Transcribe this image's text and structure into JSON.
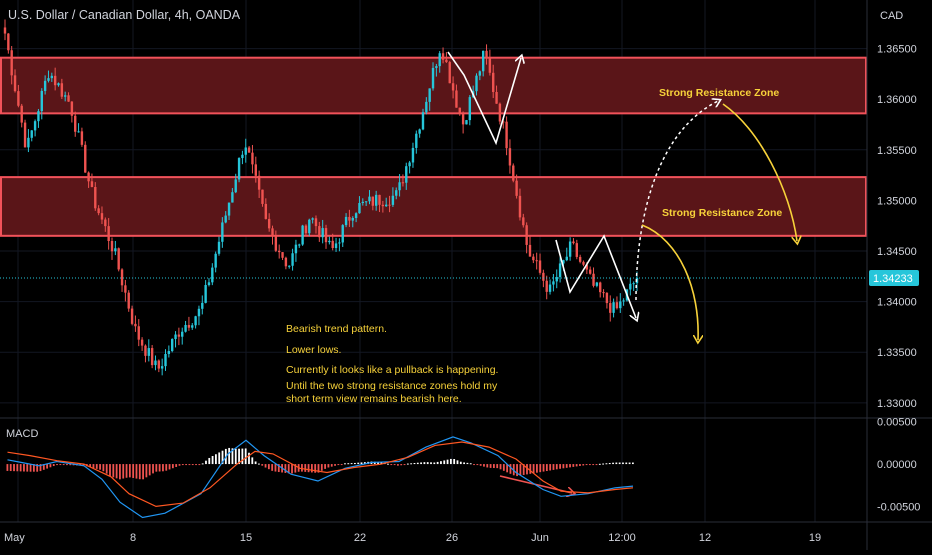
{
  "header": {
    "symbol_title": "U.S. Dollar / Canadian Dollar, 4h, OANDA"
  },
  "colors": {
    "up": "#26c6da",
    "down": "#ef5350",
    "zone_fill": "#5a1518",
    "zone_border": "#f2525a",
    "annotation": "#f7d23a",
    "macd_line": "#2196f3",
    "signal_line": "#ff5722",
    "hist_up": "#ffffff",
    "hist_down": "#ef5350",
    "price_badge": "#26c6da"
  },
  "chart_data": [
    {
      "type": "candlestick",
      "title": "U.S. Dollar / Canadian Dollar, 4h, OANDA",
      "currency_label": "CAD",
      "y_ticks": [
        "1.36500",
        "1.36000",
        "1.35500",
        "1.35000",
        "1.34500",
        "1.34000",
        "1.33500",
        "1.33000"
      ],
      "ylim": [
        1.3285,
        1.3698
      ],
      "x_tick_labels": [
        "May",
        "8",
        "15",
        "22",
        "26",
        "Jun",
        "12:00",
        "12",
        "19"
      ],
      "last_price": "1.34233",
      "last_price_value": 1.34233,
      "series_anchor_closes": [
        {
          "t": "May 1",
          "close": 1.3665
        },
        {
          "t": "May 2",
          "close": 1.355
        },
        {
          "t": "May 3",
          "close": 1.3628
        },
        {
          "t": "May 4",
          "close": 1.3595
        },
        {
          "t": "May 5",
          "close": 1.3505
        },
        {
          "t": "May 7",
          "close": 1.345
        },
        {
          "t": "May 8",
          "close": 1.337
        },
        {
          "t": "May 9",
          "close": 1.3332
        },
        {
          "t": "May 10",
          "close": 1.3372
        },
        {
          "t": "May 11",
          "close": 1.3392
        },
        {
          "t": "May 12",
          "close": 1.3475
        },
        {
          "t": "May 15",
          "close": 1.356
        },
        {
          "t": "May 16",
          "close": 1.3475
        },
        {
          "t": "May 17",
          "close": 1.3435
        },
        {
          "t": "May 18",
          "close": 1.3485
        },
        {
          "t": "May 19",
          "close": 1.345
        },
        {
          "t": "May 22",
          "close": 1.3492
        },
        {
          "t": "May 23",
          "close": 1.35
        },
        {
          "t": "May 24",
          "close": 1.3505
        },
        {
          "t": "May 25",
          "close": 1.3575
        },
        {
          "t": "May 26",
          "close": 1.3655
        },
        {
          "t": "May 29",
          "close": 1.3575
        },
        {
          "t": "May 30",
          "close": 1.3645
        },
        {
          "t": "May 31",
          "close": 1.356
        },
        {
          "t": "Jun 1",
          "close": 1.345
        },
        {
          "t": "Jun 2",
          "close": 1.341
        },
        {
          "t": "Jun 5",
          "close": 1.3455
        },
        {
          "t": "Jun 6",
          "close": 1.3415
        },
        {
          "t": "Jun 7",
          "close": 1.339
        },
        {
          "t": "Jun 7 12:00",
          "close": 1.34233
        }
      ],
      "resistance_zones": [
        {
          "name": "upper",
          "low": 1.3586,
          "high": 1.3641
        },
        {
          "name": "lower",
          "low": 1.3465,
          "high": 1.3523
        }
      ],
      "annotations": {
        "zone_label_upper": "Strong Resistance Zone",
        "zone_label_lower": "Strong Resistance Zone",
        "notes": [
          "Bearish trend pattern.",
          "Lower lows.",
          "Currently it looks like a pullback is happening.",
          "Until the two strong resistance zones hold my",
          "short term view remains bearish here."
        ]
      }
    },
    {
      "type": "line",
      "title": "MACD",
      "y_ticks": [
        "0.00500",
        "0.00000",
        "-0.00500"
      ],
      "ylim": [
        -0.0066,
        0.0052
      ],
      "series": [
        {
          "name": "",
          "role": "macd",
          "points": [
            [
              0.005,
              0.0005
            ],
            [
              0.02,
              0.0002
            ],
            [
              0.04,
              -0.0002
            ],
            [
              0.06,
              0.0003
            ],
            [
              0.09,
              -0.0002
            ],
            [
              0.11,
              -0.0018
            ],
            [
              0.13,
              -0.0045
            ],
            [
              0.155,
              -0.0063
            ],
            [
              0.18,
              -0.0058
            ],
            [
              0.22,
              -0.0035
            ],
            [
              0.25,
              0.0012
            ],
            [
              0.27,
              0.0028
            ],
            [
              0.29,
              0.001
            ],
            [
              0.32,
              -0.0012
            ],
            [
              0.35,
              -0.002
            ],
            [
              0.38,
              -0.0005
            ],
            [
              0.41,
              0.0002
            ],
            [
              0.44,
              0.0003
            ],
            [
              0.47,
              0.002
            ],
            [
              0.5,
              0.0032
            ],
            [
              0.52,
              0.0025
            ],
            [
              0.55,
              0.001
            ],
            [
              0.57,
              -0.001
            ],
            [
              0.6,
              -0.003
            ],
            [
              0.62,
              -0.0038
            ],
            [
              0.65,
              -0.0035
            ],
            [
              0.68,
              -0.0028
            ],
            [
              0.7,
              -0.0026
            ]
          ]
        },
        {
          "name": "",
          "role": "signal",
          "points": [
            [
              0.005,
              0.0014
            ],
            [
              0.03,
              0.001
            ],
            [
              0.06,
              0.0004
            ],
            [
              0.09,
              0.0
            ],
            [
              0.12,
              -0.0015
            ],
            [
              0.14,
              -0.0035
            ],
            [
              0.17,
              -0.005
            ],
            [
              0.2,
              -0.0046
            ],
            [
              0.23,
              -0.0028
            ],
            [
              0.26,
              0.0
            ],
            [
              0.28,
              0.0015
            ],
            [
              0.3,
              0.0012
            ],
            [
              0.33,
              -0.0005
            ],
            [
              0.36,
              -0.001
            ],
            [
              0.39,
              -0.0004
            ],
            [
              0.42,
              0.0
            ],
            [
              0.45,
              0.0008
            ],
            [
              0.48,
              0.0022
            ],
            [
              0.51,
              0.0026
            ],
            [
              0.54,
              0.002
            ],
            [
              0.57,
              0.0006
            ],
            [
              0.6,
              -0.002
            ],
            [
              0.62,
              -0.0032
            ],
            [
              0.65,
              -0.0034
            ],
            [
              0.68,
              -0.003
            ],
            [
              0.7,
              -0.0028
            ]
          ]
        }
      ]
    }
  ]
}
